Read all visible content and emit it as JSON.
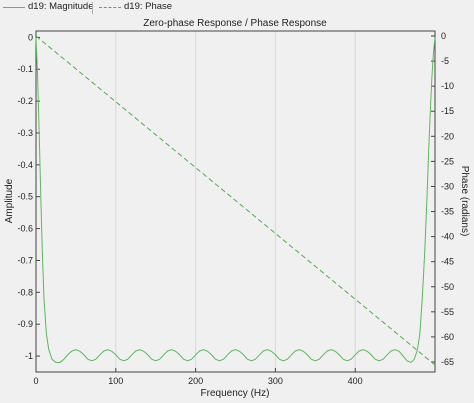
{
  "legend": {
    "magnitude_label": "d19: Magnitude",
    "phase_label": "d19: Phase"
  },
  "colors": {
    "magnitude": "#5cb85c",
    "phase": "#4cae4c",
    "grid": "#d8d8d8"
  },
  "chart_data": {
    "type": "line",
    "title": "Zero-phase Response / Phase Response",
    "xlabel": "Frequency (Hz)",
    "ylabel": "Amplitude",
    "y2label": "Phase (radians)",
    "xlim": [
      0,
      500
    ],
    "ylim": [
      -1.05,
      0.02
    ],
    "y2lim": [
      -67,
      1
    ],
    "xticks": [
      0,
      100,
      200,
      300,
      400
    ],
    "yticks": [
      0,
      -0.1,
      -0.2,
      -0.3,
      -0.4,
      -0.5,
      -0.6,
      -0.7,
      -0.8,
      -0.9,
      -1
    ],
    "y2ticks": [
      0,
      -5,
      -10,
      -15,
      -20,
      -25,
      -30,
      -35,
      -40,
      -45,
      -50,
      -55,
      -60,
      -65
    ],
    "grid": true,
    "series": [
      {
        "name": "d19: Magnitude",
        "axis": "left",
        "style": "solid",
        "x": [
          0,
          2,
          4,
          6,
          8,
          10,
          13,
          16,
          20,
          25,
          30,
          35,
          40,
          45,
          50,
          55,
          60,
          65,
          70,
          75,
          80,
          85,
          90,
          95,
          100,
          105,
          110,
          115,
          120,
          125,
          130,
          135,
          140,
          145,
          150,
          155,
          160,
          165,
          170,
          175,
          180,
          185,
          190,
          195,
          200,
          205,
          210,
          215,
          220,
          225,
          230,
          235,
          240,
          245,
          250,
          255,
          260,
          265,
          270,
          275,
          280,
          285,
          290,
          295,
          300,
          305,
          310,
          315,
          320,
          325,
          330,
          335,
          340,
          345,
          350,
          355,
          360,
          365,
          370,
          375,
          380,
          385,
          390,
          395,
          400,
          405,
          410,
          415,
          420,
          425,
          430,
          435,
          440,
          445,
          450,
          455,
          460,
          465,
          470,
          474,
          478,
          481,
          484,
          487,
          490,
          492,
          494,
          496,
          498,
          500
        ],
        "values": [
          0,
          -0.12,
          -0.3,
          -0.5,
          -0.68,
          -0.82,
          -0.93,
          -0.98,
          -1.01,
          -1.02,
          -1.02,
          -1.01,
          -0.995,
          -0.984,
          -0.98,
          -0.985,
          -0.996,
          -1.01,
          -1.015,
          -1.01,
          -0.996,
          -0.984,
          -0.98,
          -0.985,
          -0.996,
          -1.01,
          -1.015,
          -1.01,
          -0.996,
          -0.984,
          -0.98,
          -0.985,
          -0.996,
          -1.01,
          -1.015,
          -1.01,
          -0.996,
          -0.984,
          -0.98,
          -0.985,
          -0.996,
          -1.01,
          -1.015,
          -1.01,
          -0.996,
          -0.984,
          -0.98,
          -0.985,
          -0.996,
          -1.01,
          -1.015,
          -1.01,
          -0.996,
          -0.984,
          -0.98,
          -0.985,
          -0.996,
          -1.01,
          -1.015,
          -1.01,
          -0.996,
          -0.984,
          -0.98,
          -0.985,
          -0.996,
          -1.01,
          -1.015,
          -1.01,
          -0.996,
          -0.984,
          -0.98,
          -0.985,
          -0.996,
          -1.01,
          -1.015,
          -1.01,
          -0.996,
          -0.984,
          -0.98,
          -0.985,
          -0.996,
          -1.01,
          -1.015,
          -1.01,
          -0.996,
          -0.984,
          -0.98,
          -0.985,
          -0.996,
          -1.01,
          -1.015,
          -1.01,
          -0.996,
          -0.984,
          -0.98,
          -0.985,
          -1.0,
          -1.015,
          -1.02,
          -1.01,
          -0.98,
          -0.93,
          -0.82,
          -0.68,
          -0.5,
          -0.36,
          -0.24,
          -0.13,
          -0.05,
          0
        ]
      },
      {
        "name": "d19: Phase",
        "axis": "right",
        "style": "dashed",
        "x": [
          0,
          500
        ],
        "values": [
          0,
          -65.6
        ]
      }
    ]
  }
}
